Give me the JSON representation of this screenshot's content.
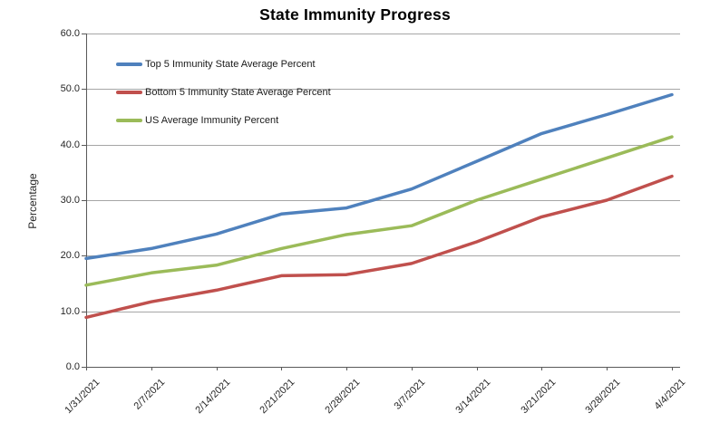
{
  "chart_data": {
    "type": "line",
    "title": "State Immunity Progress",
    "xlabel": "",
    "ylabel": "Percentage",
    "categories": [
      "1/31/2021",
      "2/7/2021",
      "2/14/2021",
      "2/21/2021",
      "2/28/2021",
      "3/7/2021",
      "3/14/2021",
      "3/21/2021",
      "3/28/2021",
      "4/4/2021"
    ],
    "series": [
      {
        "name": "Top 5 Immunity State Average Percent",
        "color": "#4F81BD",
        "values": [
          19.5,
          21.3,
          23.9,
          27.5,
          28.6,
          32.0,
          37.0,
          42.0,
          45.4,
          49.0
        ]
      },
      {
        "name": "Bottom 5 Immunity State Average Percent",
        "color": "#C0504D",
        "values": [
          8.9,
          11.7,
          13.8,
          16.4,
          16.6,
          18.6,
          22.5,
          27.0,
          30.0,
          34.3
        ]
      },
      {
        "name": "US Average Immunity Percent",
        "color": "#9BBB59",
        "values": [
          14.7,
          16.9,
          18.3,
          21.3,
          23.8,
          25.4,
          30.0,
          33.8,
          37.6,
          41.4
        ]
      }
    ],
    "ylim": [
      0,
      60
    ],
    "ytick_labels": [
      "0.0",
      "10.0",
      "20.0",
      "30.0",
      "40.0",
      "50.0",
      "60.0"
    ],
    "grid": true,
    "legend_position": "top-left-inside",
    "colors": {
      "gridline": "#A6A6A6",
      "axis": "#595959",
      "tick_text": "#262626",
      "title_text": "#000000",
      "background": "#FFFFFF"
    }
  }
}
